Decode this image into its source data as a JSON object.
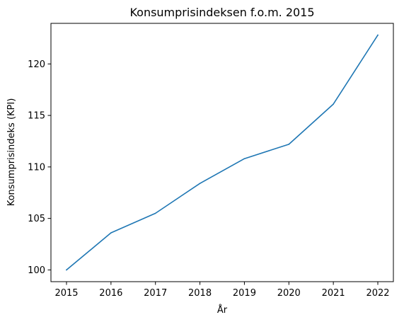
{
  "chart_data": {
    "type": "line",
    "title": "Konsumprisindeksen f.o.m. 2015",
    "xlabel": "År",
    "ylabel": "Konsumprisindeks (KPI)",
    "x": [
      2015,
      2016,
      2017,
      2018,
      2019,
      2020,
      2021,
      2022
    ],
    "series": [
      {
        "values": [
          100.0,
          103.6,
          105.5,
          108.4,
          110.8,
          112.2,
          116.1,
          122.8
        ]
      }
    ],
    "xticks": [
      "2015",
      "2016",
      "2017",
      "2018",
      "2019",
      "2020",
      "2021",
      "2022"
    ],
    "yticks": [
      "100",
      "105",
      "110",
      "115",
      "120"
    ],
    "xlim": [
      2014.65,
      2022.35
    ],
    "ylim": [
      98.86,
      123.94
    ],
    "grid": false,
    "line_color": "#1f77b4"
  }
}
